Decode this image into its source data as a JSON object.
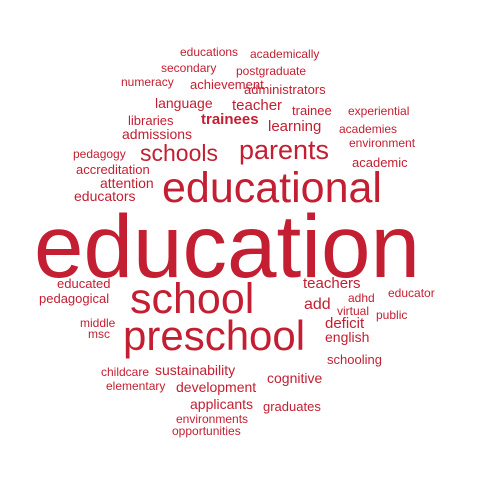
{
  "word_cloud": {
    "color": "#c41e32",
    "background": "#ffffff",
    "words": [
      "educations",
      "academically",
      "secondary",
      "postgraduate",
      "numeracy",
      "achievement",
      "administrators",
      "language",
      "teacher",
      "trainee",
      "experiential",
      "libraries",
      "trainees",
      "learning",
      "academies",
      "admissions",
      "environment",
      "parents",
      "schools",
      "pedagogy",
      "academic",
      "accreditation",
      "educational",
      "attention",
      "educators",
      "education",
      "teachers",
      "educated",
      "school",
      "educator",
      "pedagogical",
      "adhd",
      "add",
      "virtual",
      "public",
      "middle",
      "deficit",
      "preschool",
      "msc",
      "english",
      "schooling",
      "sustainability",
      "childcare",
      "cognitive",
      "elementary",
      "development",
      "applicants",
      "graduates",
      "environments",
      "opportunities"
    ]
  }
}
